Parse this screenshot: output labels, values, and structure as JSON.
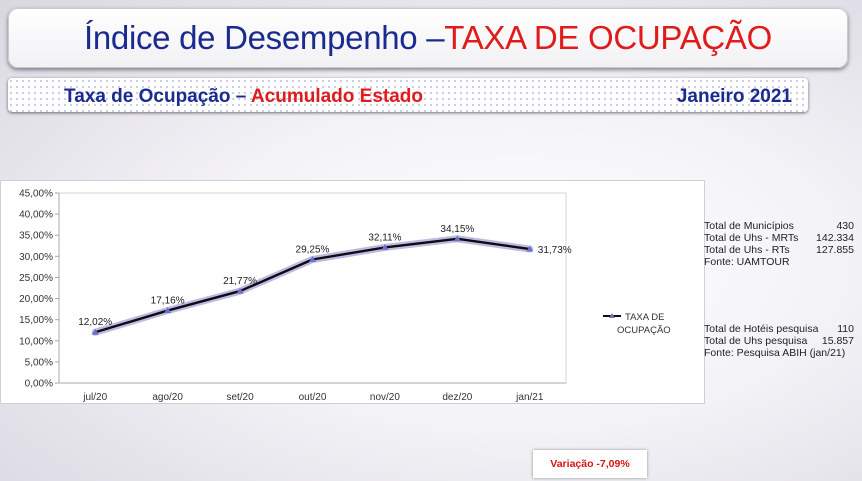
{
  "header": {
    "title_main": "Índice de Desempenho – ",
    "title_accent": "TAXA DE OCUPAÇÃO"
  },
  "subheader": {
    "label_main": "Taxa de Ocupação – ",
    "label_accent": "Acumulado Estado",
    "period": "Janeiro 2021"
  },
  "chart_data": {
    "type": "line",
    "categories": [
      "jul/20",
      "ago/20",
      "set/20",
      "out/20",
      "nov/20",
      "dez/20",
      "jan/21"
    ],
    "series": [
      {
        "name": "TAXA DE OCUPAÇÃO",
        "values": [
          12.02,
          17.16,
          21.77,
          29.25,
          32.11,
          34.15,
          31.73
        ],
        "labels": [
          "12,02%",
          "17,16%",
          "21,77%",
          "29,25%",
          "32,11%",
          "34,15%",
          "31,73%"
        ]
      }
    ],
    "legend_lines": [
      "TAXA DE",
      "OCUPAÇÃO"
    ],
    "legend_position": "right",
    "yticks": [
      "0,00%",
      "5,00%",
      "10,00%",
      "15,00%",
      "20,00%",
      "25,00%",
      "30,00%",
      "35,00%",
      "40,00%",
      "45,00%"
    ],
    "ylim": [
      0,
      45
    ],
    "grid": false,
    "line_color": "#0d0d0d",
    "glow_color": "#a7a3dc",
    "marker_color": "#6a72c8"
  },
  "stats_top": [
    {
      "label": "Total de Municípios",
      "value": "430"
    },
    {
      "label": "Total de Uhs - MRTs",
      "value": "142.334"
    },
    {
      "label": "Total de Uhs - RTs",
      "value": "127.855"
    },
    {
      "label": "Fonte: UAMTOUR",
      "value": ""
    }
  ],
  "stats_bottom": [
    {
      "label": "Total de Hotéis pesquisa",
      "value": "110"
    },
    {
      "label": "Total de Uhs pesquisa",
      "value": "15.857"
    },
    {
      "label": "Fonte: Pesquisa ABIH (jan/21)",
      "value": ""
    }
  ],
  "variation": {
    "text": "Variação  -7,09%"
  },
  "colors": {
    "title_blue": "#1b2a8f",
    "accent_red": "#e01b1b"
  }
}
